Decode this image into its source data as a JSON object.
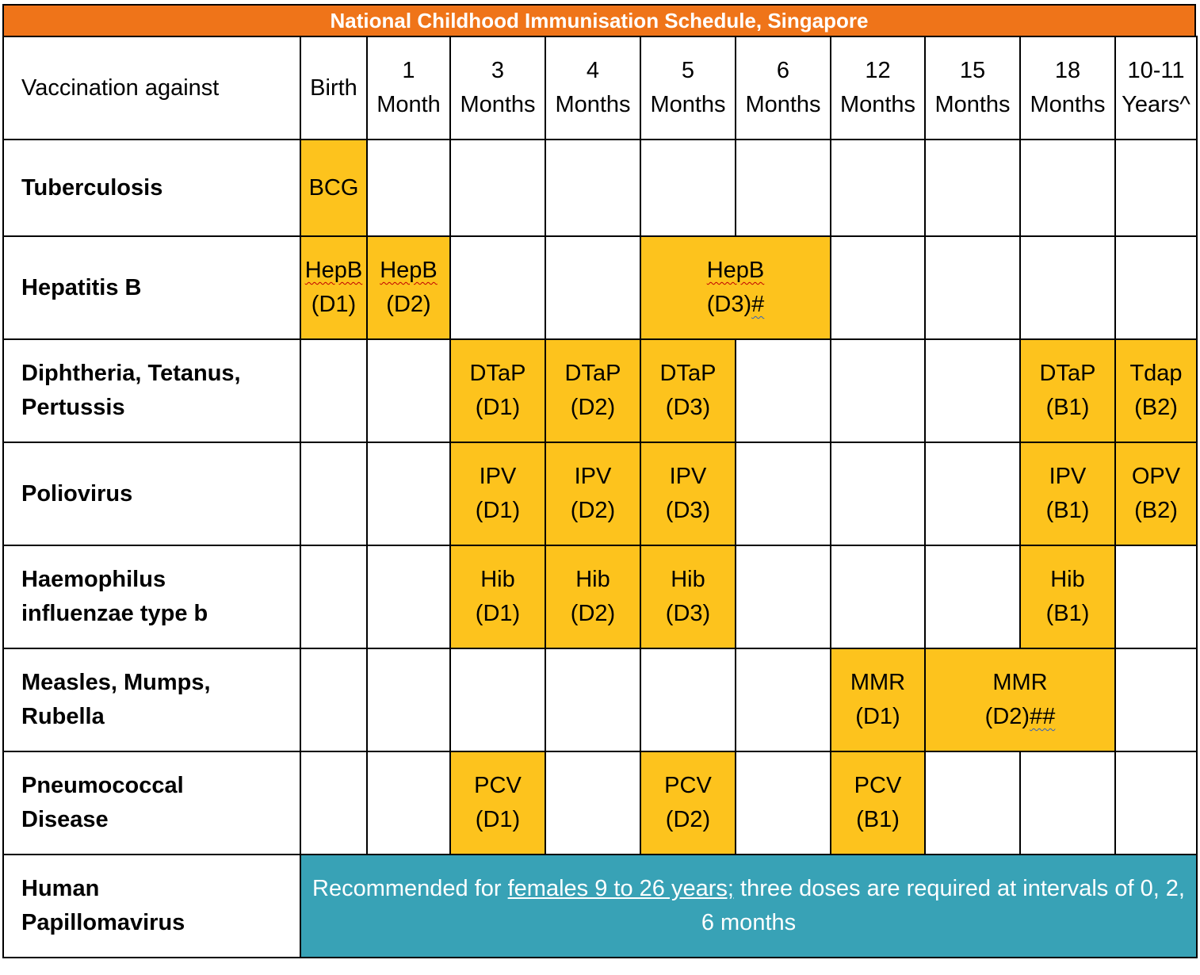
{
  "title": "National Childhood Immunisation Schedule, Singapore",
  "header": {
    "label": "Vaccination against",
    "columns": [
      {
        "top": "",
        "bottom": "Birth"
      },
      {
        "top": "1",
        "bottom": "Month"
      },
      {
        "top": "3",
        "bottom": "Months"
      },
      {
        "top": "4",
        "bottom": "Months"
      },
      {
        "top": "5",
        "bottom": "Months"
      },
      {
        "top": "6",
        "bottom": "Months"
      },
      {
        "top": "12",
        "bottom": "Months"
      },
      {
        "top": "15",
        "bottom": "Months"
      },
      {
        "top": "18",
        "bottom": "Months"
      },
      {
        "top": "10-11",
        "bottom": "Years^"
      }
    ]
  },
  "rows": {
    "tuberculosis": {
      "label": "Tuberculosis",
      "birth": "BCG"
    },
    "hepatitis_b": {
      "label": "Hepatitis B",
      "birth": {
        "name": "HepB",
        "dose": "(D1)"
      },
      "m1": {
        "name": "HepB",
        "dose": "(D2)"
      },
      "m5_6": {
        "name": "HepB",
        "dose_a": "(D3)",
        "dose_b": "#"
      }
    },
    "dtp": {
      "label_1": "Diphtheria, Tetanus,",
      "label_2": "Pertussis",
      "m3": {
        "name": "DTaP",
        "dose": "(D1)"
      },
      "m4": {
        "name": "DTaP",
        "dose": "(D2)"
      },
      "m5": {
        "name": "DTaP",
        "dose": "(D3)"
      },
      "m18": {
        "name": "DTaP",
        "dose": "(B1)"
      },
      "y10": {
        "name": "Tdap",
        "dose": "(B2)"
      }
    },
    "polio": {
      "label": "Poliovirus",
      "m3": {
        "name": "IPV",
        "dose": "(D1)"
      },
      "m4": {
        "name": "IPV",
        "dose": "(D2)"
      },
      "m5": {
        "name": "IPV",
        "dose": "(D3)"
      },
      "m18": {
        "name": "IPV",
        "dose": "(B1)"
      },
      "y10": {
        "name": "OPV",
        "dose": "(B2)"
      }
    },
    "hib": {
      "label_1": "Haemophilus",
      "label_2": "influenzae type b",
      "m3": {
        "name": "Hib",
        "dose": "(D1)"
      },
      "m4": {
        "name": "Hib",
        "dose": "(D2)"
      },
      "m5": {
        "name": "Hib",
        "dose": "(D3)"
      },
      "m18": {
        "name": "Hib",
        "dose": "(B1)"
      }
    },
    "mmr": {
      "label_1": "Measles, Mumps,",
      "label_2": "Rubella",
      "m12": {
        "name": "MMR",
        "dose": "(D1)"
      },
      "m15_18": {
        "name": "MMR",
        "dose_a": "(D2)",
        "dose_b": "##"
      }
    },
    "pcv": {
      "label_1": "Pneumococcal",
      "label_2": "Disease",
      "m3": {
        "name": "PCV",
        "dose": "(D1)"
      },
      "m5": {
        "name": "PCV",
        "dose": "(D2)"
      },
      "m12": {
        "name": "PCV",
        "dose": "(B1)"
      }
    },
    "hpv": {
      "label_1": "Human",
      "label_2": "Papillomavirus",
      "note_pre": "Recommended for ",
      "note_link": "females 9 to 26 years;",
      "note_post": " three doses are required at intervals of 0, 2, 6 months"
    }
  },
  "colors": {
    "title_bar": "#ef7419",
    "dose_fill": "#fdc31d",
    "hpv_fill": "#38a2b6"
  }
}
